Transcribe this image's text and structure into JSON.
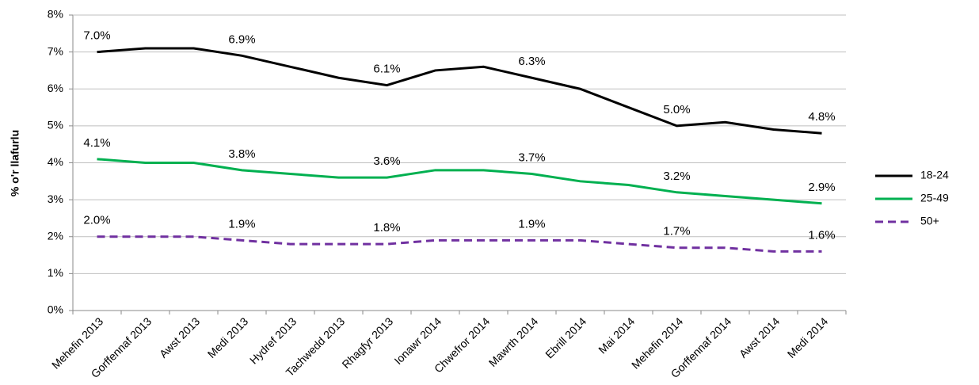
{
  "chart_data": {
    "type": "line",
    "y_axis_label": "% o'r llafurlu",
    "categories": [
      "Mehefin 2013",
      "Gorffennaf 2013",
      "Awst 2013",
      "Medi 2013",
      "Hydref 2013",
      "Tachwedd 2013",
      "Rhagfyr 2013",
      "Ionawr 2014",
      "Chwefror 2014",
      "Mawrth 2014",
      "Ebrill 2014",
      "Mai 2014",
      "Mehefin 2014",
      "Gorffennaf 2014",
      "Awst 2014",
      "Medi 2014"
    ],
    "series": [
      {
        "name": "18-24",
        "color": "#000000",
        "line_style": "solid",
        "values": [
          7.0,
          7.1,
          7.1,
          6.9,
          6.6,
          6.3,
          6.1,
          6.5,
          6.6,
          6.3,
          6.0,
          5.5,
          5.0,
          5.1,
          4.9,
          4.8
        ],
        "value_labels": [
          "7.0%",
          null,
          null,
          "6.9%",
          null,
          null,
          "6.1%",
          null,
          null,
          "6.3%",
          null,
          null,
          "5.0%",
          null,
          null,
          "4.8%"
        ]
      },
      {
        "name": "25-49",
        "color": "#00b050",
        "line_style": "solid",
        "values": [
          4.1,
          4.0,
          4.0,
          3.8,
          3.7,
          3.6,
          3.6,
          3.8,
          3.8,
          3.7,
          3.5,
          3.4,
          3.2,
          3.1,
          3.0,
          2.9
        ],
        "value_labels": [
          "4.1%",
          null,
          null,
          "3.8%",
          null,
          null,
          "3.6%",
          null,
          null,
          "3.7%",
          null,
          null,
          "3.2%",
          null,
          null,
          "2.9%"
        ]
      },
      {
        "name": "50+",
        "color": "#7030a0",
        "line_style": "dashed",
        "values": [
          2.0,
          2.0,
          2.0,
          1.9,
          1.8,
          1.8,
          1.8,
          1.9,
          1.9,
          1.9,
          1.9,
          1.8,
          1.7,
          1.7,
          1.6,
          1.6
        ],
        "value_labels": [
          "2.0%",
          null,
          null,
          "1.9%",
          null,
          null,
          "1.8%",
          null,
          null,
          "1.9%",
          null,
          null,
          "1.7%",
          null,
          null,
          "1.6%"
        ]
      }
    ],
    "ylim": [
      0,
      8
    ],
    "yticks": [
      {
        "value": 0,
        "label": "0%"
      },
      {
        "value": 1,
        "label": "1%"
      },
      {
        "value": 2,
        "label": "2%"
      },
      {
        "value": 3,
        "label": "3%"
      },
      {
        "value": 4,
        "label": "4%"
      },
      {
        "value": 5,
        "label": "5%"
      },
      {
        "value": 6,
        "label": "6%"
      },
      {
        "value": 7,
        "label": "7%"
      },
      {
        "value": 8,
        "label": "8%"
      }
    ],
    "grid": true,
    "legend_position": "right"
  }
}
